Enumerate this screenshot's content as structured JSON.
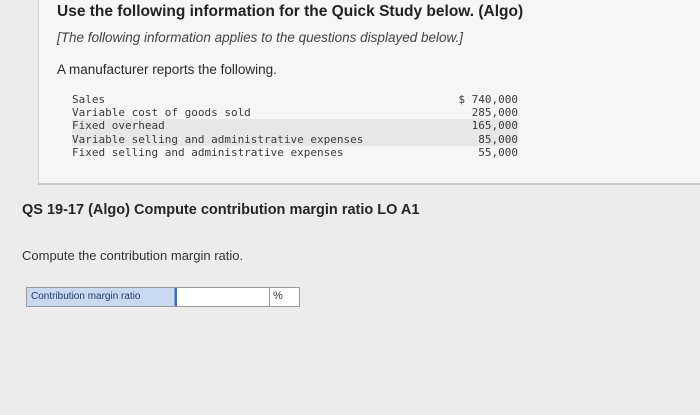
{
  "header": {
    "title": "Use the following information for the Quick Study below. (Algo)",
    "note": "[The following information applies to the questions displayed below.]",
    "intro": "A manufacturer reports the following."
  },
  "financials": [
    {
      "label": "Sales",
      "value": "$ 740,000"
    },
    {
      "label": "Variable cost of goods sold",
      "value": "285,000"
    },
    {
      "label": "Fixed overhead",
      "value": "165,000"
    },
    {
      "label": "Variable selling and administrative expenses",
      "value": "85,000"
    },
    {
      "label": "Fixed selling and administrative expenses",
      "value": "55,000"
    }
  ],
  "question": {
    "title": "QS 19-17 (Algo) Compute contribution margin ratio LO A1",
    "instruction": "Compute the contribution margin ratio."
  },
  "answer": {
    "label": "Contribution margin ratio",
    "value": "",
    "unit": "%"
  },
  "colors": {
    "label_bg": "#c9d9ef",
    "input_accent": "#3b6fc4"
  }
}
